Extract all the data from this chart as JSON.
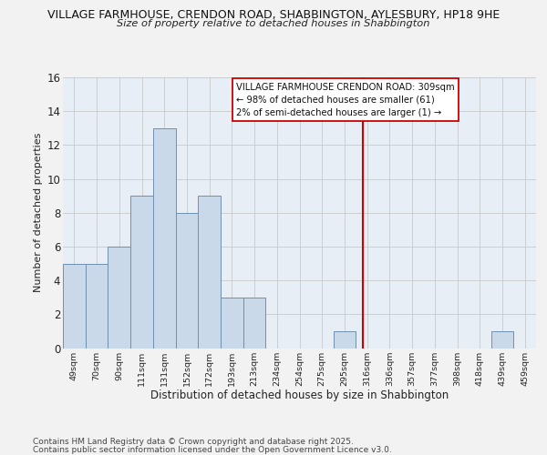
{
  "title": "VILLAGE FARMHOUSE, CRENDON ROAD, SHABBINGTON, AYLESBURY, HP18 9HE",
  "subtitle": "Size of property relative to detached houses in Shabbington",
  "xlabel": "Distribution of detached houses by size in Shabbington",
  "ylabel": "Number of detached properties",
  "bin_labels": [
    "49sqm",
    "70sqm",
    "90sqm",
    "111sqm",
    "131sqm",
    "152sqm",
    "172sqm",
    "193sqm",
    "213sqm",
    "234sqm",
    "254sqm",
    "275sqm",
    "295sqm",
    "316sqm",
    "336sqm",
    "357sqm",
    "377sqm",
    "398sqm",
    "418sqm",
    "439sqm",
    "459sqm"
  ],
  "bin_counts": [
    5,
    5,
    6,
    9,
    13,
    8,
    9,
    3,
    3,
    0,
    0,
    0,
    1,
    0,
    0,
    0,
    0,
    0,
    0,
    1,
    0
  ],
  "bar_color": "#c9d9ea",
  "bar_edgecolor": "#7090b0",
  "vline_x": 12.82,
  "annotation_title": "VILLAGE FARMHOUSE CRENDON ROAD: 309sqm",
  "annotation_line1": "← 98% of detached houses are smaller (61)",
  "annotation_line2": "2% of semi-detached houses are larger (1) →",
  "footer1": "Contains HM Land Registry data © Crown copyright and database right 2025.",
  "footer2": "Contains public sector information licensed under the Open Government Licence v3.0.",
  "ylim": [
    0,
    16
  ],
  "background_color": "#f2f2f2",
  "plot_bg_color": "#e8eef5",
  "grid_color": "#c8c8c8",
  "vline_color": "#cc0000",
  "annotation_box_facecolor": "#ffffff",
  "annotation_box_edgecolor": "#cc0000"
}
